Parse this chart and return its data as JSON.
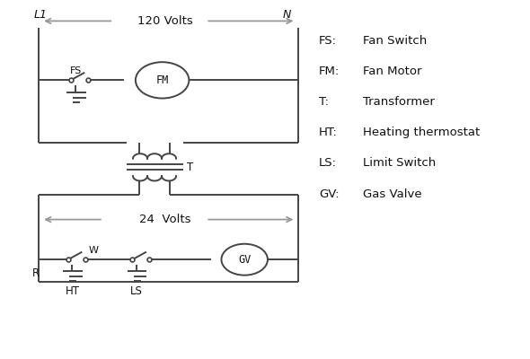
{
  "legend": {
    "FS": "Fan Switch",
    "FM": "Fan Motor",
    "T": "Transformer",
    "HT": "Heating thermostat",
    "LS": "Limit Switch",
    "GV": "Gas Valve"
  },
  "line_color": "#444444",
  "bg_color": "#ffffff",
  "text_color": "#111111",
  "arrow_color": "#999999",
  "figsize": [
    5.9,
    4.0
  ],
  "dpi": 100
}
